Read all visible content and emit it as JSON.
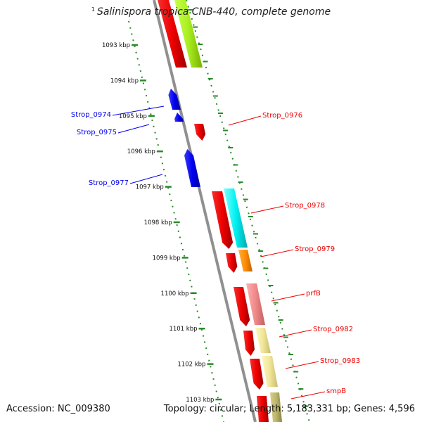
{
  "title": {
    "superscript": "1",
    "text": "Salinispora tropica CNB-440, complete genome"
  },
  "footer": {
    "accession": "Accession: NC_009380",
    "summary": "Topology: circular; Length: 5,183,331 bp; Genes: 4,596"
  },
  "scale_ticks": [
    "1093 kbp",
    "1094 kbp",
    "1095 kbp",
    "1096 kbp",
    "1097 kbp",
    "1098 kbp",
    "1099 kbp",
    "1100 kbp",
    "1101 kbp",
    "1102 kbp",
    "1103 kbp"
  ],
  "gene_labels": {
    "reverse": [
      "Strop_0974",
      "Strop_0975",
      "Strop_0977"
    ],
    "forward": [
      "Strop_0976",
      "Strop_0978",
      "Strop_0979",
      "prfB",
      "Strop_0982",
      "Strop_0983",
      "smpB"
    ]
  },
  "colors": {
    "reverse_cds": "#0000ee",
    "forward_cds": "#ee0000",
    "scale_ticks": "#2a8a2a",
    "backbone": "#888888"
  }
}
